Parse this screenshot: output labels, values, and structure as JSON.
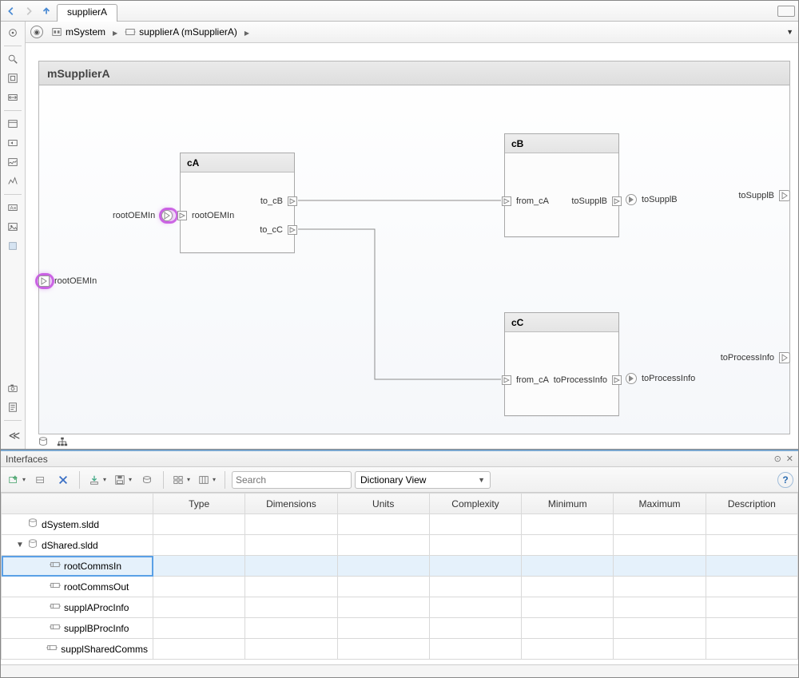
{
  "tab": {
    "title": "supplierA"
  },
  "breadcrumb": {
    "items": [
      {
        "label": "mSystem"
      },
      {
        "label": "supplierA (mSupplierA)"
      }
    ]
  },
  "diagram": {
    "title": "mSupplierA",
    "root_input": {
      "label": "rootOEMIn"
    },
    "root_input_ext": {
      "label": "rootOEMIn"
    },
    "out_supplB_ext": {
      "label": "toSupplB"
    },
    "out_process_ext": {
      "label": "toProcessInfo"
    },
    "cA": {
      "title": "cA",
      "in_rootOEMIn": "rootOEMIn",
      "out_to_cB": "to_cB",
      "out_to_cC": "to_cC"
    },
    "cB": {
      "title": "cB",
      "in_from_cA": "from_cA",
      "out_toSupplB": "toSupplB",
      "ext_toSupplB": "toSupplB"
    },
    "cC": {
      "title": "cC",
      "in_from_cA": "from_cA",
      "out_toProcessInfo": "toProcessInfo",
      "ext_toProcessInfo": "toProcessInfo"
    }
  },
  "interfaces": {
    "panel_title": "Interfaces",
    "search_placeholder": "Search",
    "view_mode": "Dictionary View",
    "columns": [
      "",
      "Type",
      "Dimensions",
      "Units",
      "Complexity",
      "Minimum",
      "Maximum",
      "Description"
    ],
    "rows": [
      {
        "label": "dSystem.sldd",
        "level": 0,
        "icon": "dict",
        "expandable": false
      },
      {
        "label": "dShared.sldd",
        "level": 0,
        "icon": "dict",
        "expandable": true,
        "expanded": true
      },
      {
        "label": "rootCommsIn",
        "level": 1,
        "icon": "iface",
        "selected": true
      },
      {
        "label": "rootCommsOut",
        "level": 1,
        "icon": "iface"
      },
      {
        "label": "supplAProcInfo",
        "level": 1,
        "icon": "iface"
      },
      {
        "label": "supplBProcInfo",
        "level": 1,
        "icon": "iface"
      },
      {
        "label": "supplSharedComms",
        "level": 1,
        "icon": "iface"
      }
    ]
  },
  "colors": {
    "highlight": "#c44fe0",
    "selection_bg": "#e5f1fb",
    "selection_border": "#5aa0e6"
  }
}
